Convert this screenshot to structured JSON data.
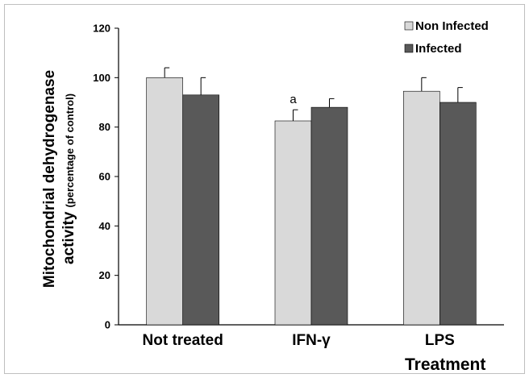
{
  "chart_data": {
    "type": "bar",
    "categories": [
      "Not treated",
      "IFN-γ",
      "LPS"
    ],
    "series": [
      {
        "name": "Non Infected",
        "values": [
          100,
          82.5,
          94.5
        ],
        "errors": [
          4,
          4.5,
          5.5
        ],
        "color": "#d9d9d9"
      },
      {
        "name": "Infected",
        "values": [
          93,
          88,
          90
        ],
        "errors": [
          7,
          3.5,
          6
        ],
        "color": "#595959"
      }
    ],
    "ylabel": "Mitochondrial dehydrogenase",
    "ylabel_line2": "activity",
    "ylabel_sub": "(percentage of control)",
    "xlabel": "Treatment",
    "ylim": [
      0,
      120
    ],
    "yticks": [
      "0",
      "20",
      "40",
      "60",
      "80",
      "100",
      "120"
    ],
    "grid": false,
    "legend_position": "top-right",
    "annotations": [
      {
        "category": 1,
        "series": 0,
        "text": "a"
      }
    ]
  }
}
